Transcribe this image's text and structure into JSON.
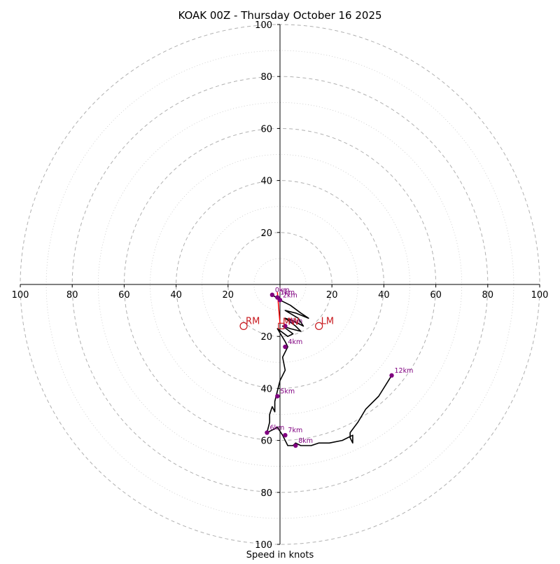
{
  "chart_data": {
    "type": "hodograph",
    "title": "KOAK 00Z - Thursday October 16 2025",
    "xlabel": "Speed in knots",
    "axis_range": [
      -100,
      100
    ],
    "ring_major_step": 20,
    "ring_minor_step": 10,
    "tick_labels": {
      "x": [
        "100",
        "80",
        "60",
        "40",
        "20",
        "20",
        "40",
        "60",
        "80",
        "100"
      ],
      "x_values": [
        -100,
        -80,
        -60,
        -40,
        -20,
        20,
        40,
        60,
        80,
        100
      ],
      "y": [
        "20",
        "40",
        "60",
        "80",
        "100",
        "20",
        "40",
        "60",
        "80",
        "100"
      ],
      "y_values": [
        20,
        40,
        60,
        80,
        100,
        -20,
        -40,
        -60,
        -80,
        -100
      ]
    },
    "colors": {
      "trace": "#000000",
      "height_marker": "#800080",
      "motion": "#c8191e",
      "mean_wind_vector": "#ff0000",
      "major_ring": "#b0b0b0",
      "minor_ring": "#c8c8c8"
    },
    "trace": [
      [
        -3,
        -4
      ],
      [
        0,
        -6
      ],
      [
        4,
        -8
      ],
      [
        8,
        -11
      ],
      [
        11,
        -13
      ],
      [
        6,
        -11
      ],
      [
        2,
        -10
      ],
      [
        7,
        -13
      ],
      [
        9,
        -16
      ],
      [
        5,
        -14
      ],
      [
        2,
        -13
      ],
      [
        6,
        -16
      ],
      [
        8,
        -18
      ],
      [
        4,
        -17
      ],
      [
        1,
        -16
      ],
      [
        5,
        -19
      ],
      [
        3,
        -20
      ],
      [
        -1,
        -17
      ],
      [
        2,
        -22
      ],
      [
        3,
        -24
      ],
      [
        1,
        -28
      ],
      [
        2,
        -33
      ],
      [
        0,
        -37
      ],
      [
        -1,
        -41
      ],
      [
        -2,
        -45
      ],
      [
        -2,
        -49
      ],
      [
        -3,
        -47
      ],
      [
        -4,
        -50
      ],
      [
        -4,
        -53
      ],
      [
        -5,
        -57
      ],
      [
        -3,
        -56
      ],
      [
        -1,
        -55
      ],
      [
        1,
        -58
      ],
      [
        3,
        -62
      ],
      [
        5,
        -62
      ],
      [
        6,
        -61
      ],
      [
        8,
        -62
      ],
      [
        12,
        -62
      ],
      [
        15,
        -61
      ],
      [
        19,
        -61
      ],
      [
        24,
        -60
      ],
      [
        28,
        -58
      ],
      [
        28,
        -61
      ],
      [
        27,
        -59
      ],
      [
        27,
        -57
      ],
      [
        30,
        -53
      ],
      [
        33,
        -48
      ],
      [
        38,
        -43
      ],
      [
        43,
        -35
      ]
    ],
    "height_markers": [
      {
        "label": "0km",
        "x": -3,
        "y": -4
      },
      {
        "label": "1km",
        "x": -1,
        "y": -5
      },
      {
        "label": "2km",
        "x": 0,
        "y": -6
      },
      {
        "label": "3km",
        "x": 2,
        "y": -16
      },
      {
        "label": "4km",
        "x": 2,
        "y": -24
      },
      {
        "label": "5km",
        "x": -1,
        "y": -43
      },
      {
        "label": "6km",
        "x": -5,
        "y": -57
      },
      {
        "label": "7km",
        "x": 2,
        "y": -58
      },
      {
        "label": "8km",
        "x": 6,
        "y": -62
      },
      {
        "label": "12km",
        "x": 43,
        "y": -35
      }
    ],
    "storm_motion": [
      {
        "label": "RM",
        "x": -14,
        "y": -16
      },
      {
        "label": "LM",
        "x": 15,
        "y": -16
      }
    ],
    "mean_wind": {
      "label": "MW",
      "x": 0.5,
      "y": -16
    },
    "vector": {
      "x0": -1,
      "y0": -3,
      "x1": 0,
      "y1": -15
    }
  }
}
